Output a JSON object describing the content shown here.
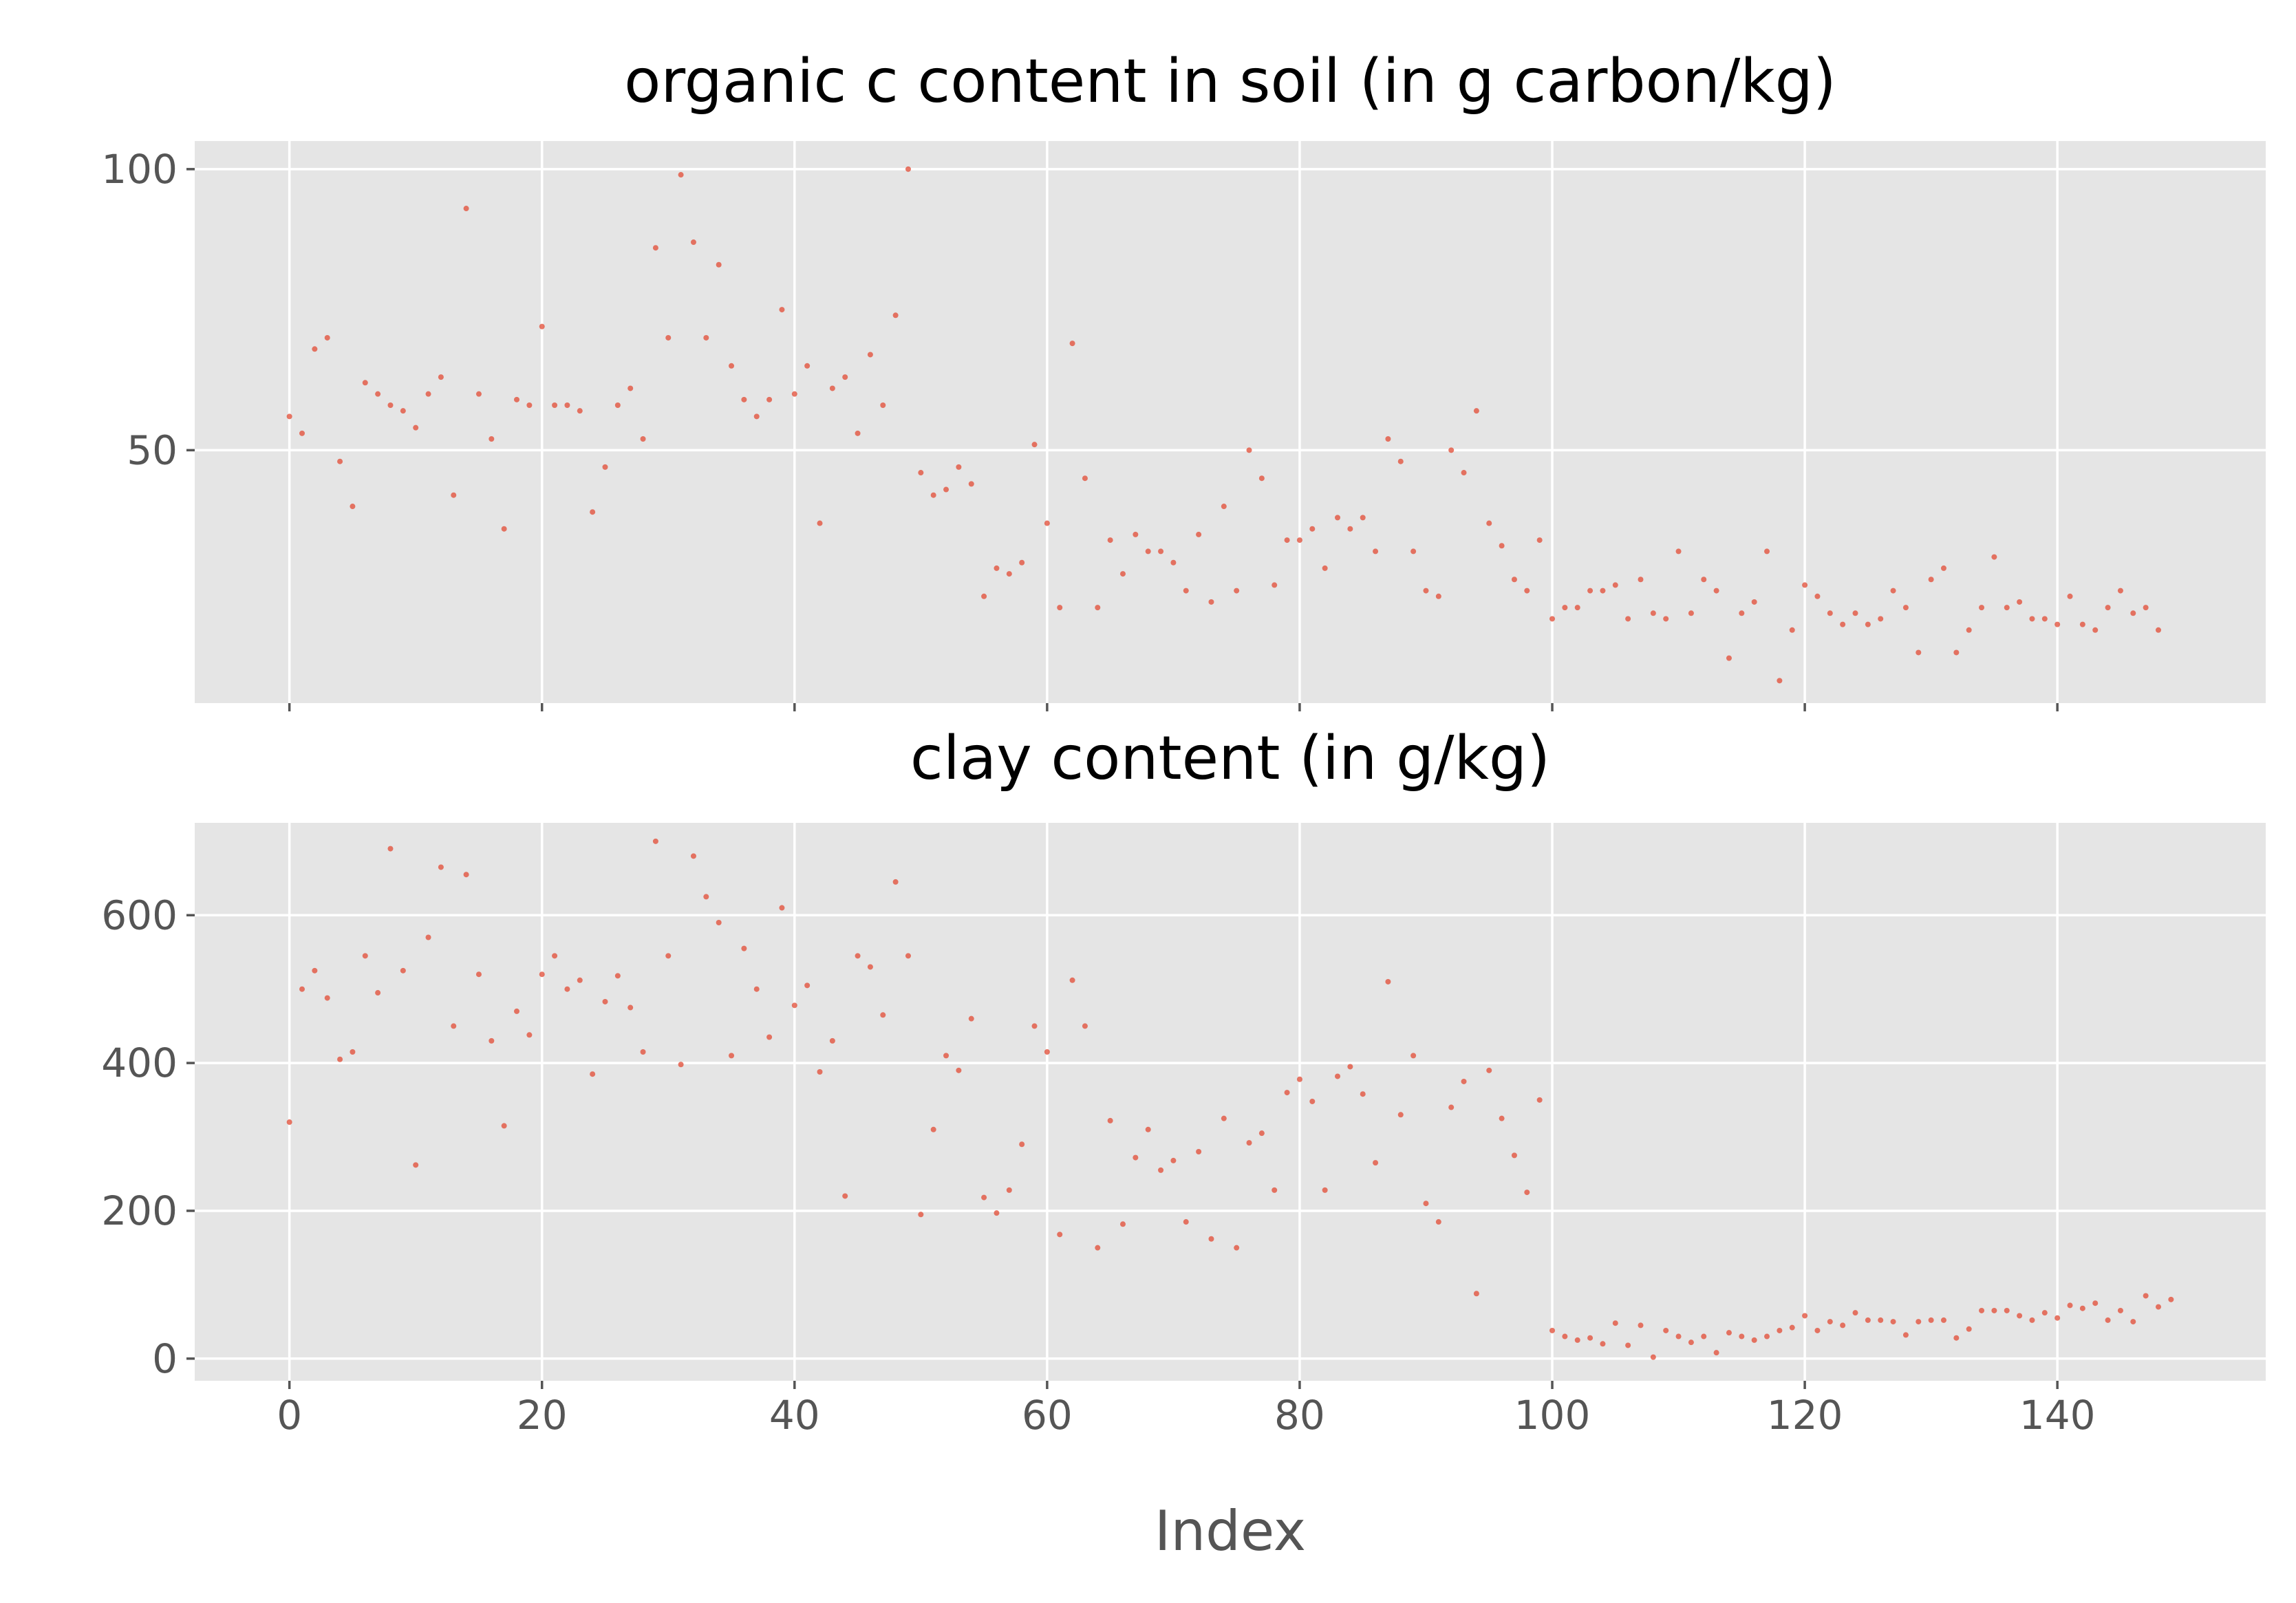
{
  "chart_data": [
    {
      "type": "scatter",
      "title": "organic c content in soil (in g carbon/kg)",
      "xlabel": "",
      "ylabel": "",
      "xlim": [
        -7.5,
        156.5
      ],
      "ylim": [
        5,
        105
      ],
      "xticks": [
        0,
        20,
        40,
        60,
        80,
        100,
        120,
        140
      ],
      "yticks": [
        50,
        100
      ],
      "ytick_labels": [
        "50",
        "100"
      ],
      "show_xtick_labels": false,
      "grid": true,
      "color": "#E24A33",
      "series": [
        {
          "values": [
            56,
            53,
            68,
            70,
            48,
            40,
            62,
            60,
            58,
            57,
            54,
            60,
            63,
            42,
            93,
            60,
            52,
            36,
            59,
            58,
            72,
            58,
            58,
            57,
            39,
            47,
            58,
            61,
            52,
            86,
            70,
            99,
            87,
            70,
            83,
            65,
            59,
            56,
            59,
            75,
            60,
            65,
            37,
            61,
            63,
            53,
            67,
            58,
            74,
            100,
            46,
            42,
            43,
            47,
            44,
            24,
            29,
            28,
            30,
            51,
            37,
            22,
            69,
            45,
            22,
            34,
            28,
            35,
            32,
            32,
            30,
            25,
            35,
            23,
            40,
            25,
            50,
            45,
            26,
            34,
            34,
            36,
            29,
            38,
            36,
            38,
            32,
            52,
            48,
            32,
            25,
            24,
            50,
            46,
            57,
            37,
            33,
            27,
            25,
            34,
            20,
            22,
            22,
            25,
            25,
            26,
            20,
            27,
            21,
            20,
            32,
            21,
            27,
            25,
            13,
            21,
            23,
            32,
            9,
            18,
            26,
            24,
            21,
            19,
            21,
            19,
            20,
            25,
            22,
            14,
            27,
            29,
            14,
            18,
            22,
            31,
            22,
            23,
            20,
            20,
            19,
            24,
            19,
            18,
            22,
            25,
            21,
            22,
            18
          ]
        }
      ]
    },
    {
      "type": "scatter",
      "title": "clay content (in g/kg)",
      "xlabel": "Index",
      "ylabel": "",
      "xlim": [
        -7.5,
        156.5
      ],
      "ylim": [
        -30,
        725
      ],
      "xticks": [
        0,
        20,
        40,
        60,
        80,
        100,
        120,
        140
      ],
      "xtick_labels": [
        "0",
        "20",
        "40",
        "60",
        "80",
        "100",
        "120",
        "140"
      ],
      "yticks": [
        0,
        200,
        400,
        600
      ],
      "ytick_labels": [
        "0",
        "200",
        "400",
        "600"
      ],
      "grid": true,
      "color": "#E24A33",
      "series": [
        {
          "values": [
            320,
            500,
            525,
            488,
            405,
            415,
            545,
            495,
            690,
            525,
            262,
            570,
            665,
            450,
            655,
            520,
            430,
            315,
            470,
            438,
            520,
            545,
            500,
            512,
            385,
            483,
            518,
            475,
            415,
            700,
            545,
            398,
            680,
            625,
            590,
            410,
            555,
            500,
            435,
            610,
            478,
            505,
            388,
            430,
            220,
            545,
            530,
            465,
            645,
            545,
            195,
            310,
            410,
            390,
            460,
            218,
            197,
            228,
            290,
            450,
            415,
            168,
            512,
            450,
            150,
            322,
            182,
            272,
            310,
            255,
            268,
            185,
            280,
            162,
            325,
            150,
            292,
            305,
            228,
            360,
            378,
            348,
            228,
            382,
            395,
            358,
            265,
            510,
            330,
            410,
            210,
            185,
            340,
            375,
            88,
            390,
            325,
            275,
            225,
            350,
            38,
            30,
            25,
            28,
            20,
            48,
            18,
            45,
            2,
            38,
            30,
            22,
            30,
            8,
            35,
            30,
            25,
            30,
            38,
            42,
            58,
            38,
            50,
            45,
            62,
            52,
            52,
            50,
            32,
            50,
            52,
            52,
            28,
            40,
            65,
            65,
            65,
            58,
            52,
            62,
            55,
            72,
            68,
            75,
            52,
            65,
            50,
            85,
            70,
            80
          ]
        }
      ]
    }
  ]
}
